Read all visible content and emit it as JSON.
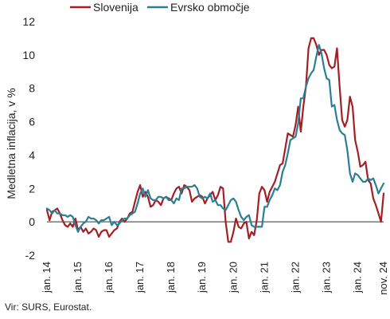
{
  "chart_data": {
    "type": "line",
    "ylabel": "Medletna inflacija, v %",
    "ylim": [
      -2,
      12
    ],
    "yticks": [
      "-2",
      "0",
      "2",
      "4",
      "6",
      "8",
      "10",
      "12"
    ],
    "x_start": "2014-01",
    "x_end": "2024-11",
    "x_ticks": [
      {
        "label": "jan. 14",
        "month": "2014-01"
      },
      {
        "label": "jan. 15",
        "month": "2015-01"
      },
      {
        "label": "jan. 16",
        "month": "2016-01"
      },
      {
        "label": "jan. 17",
        "month": "2017-01"
      },
      {
        "label": "jan. 18",
        "month": "2018-01"
      },
      {
        "label": "jan. 19",
        "month": "2019-01"
      },
      {
        "label": "jan. 20",
        "month": "2020-01"
      },
      {
        "label": "jan. 21",
        "month": "2021-01"
      },
      {
        "label": "jan. 22",
        "month": "2022-01"
      },
      {
        "label": "jan. 23",
        "month": "2023-01"
      },
      {
        "label": "jan. 24",
        "month": "2024-01"
      },
      {
        "label": "nov. 24",
        "month": "2024-11"
      }
    ],
    "legend_position": "top-left",
    "series": [
      {
        "name": "Slovenija",
        "color": "#A31F24",
        "values": [
          0.7,
          0.1,
          0.6,
          0.7,
          0.8,
          0.5,
          0.1,
          -0.2,
          -0.3,
          -0.1,
          -0.3,
          0.2,
          -0.5,
          -0.3,
          -0.6,
          -0.4,
          -0.7,
          -0.6,
          -0.4,
          -0.5,
          -0.9,
          -0.6,
          -0.5,
          -0.5,
          -0.9,
          -0.7,
          -0.5,
          -0.4,
          0.0,
          0.2,
          0.0,
          0.2,
          0.5,
          0.6,
          1.2,
          1.8,
          2.2,
          1.5,
          1.8,
          1.5,
          0.9,
          1.0,
          1.3,
          1.2,
          1.0,
          1.4,
          1.5,
          1.4,
          1.3,
          1.7,
          2.0,
          2.1,
          1.7,
          2.2,
          2.1,
          1.9,
          1.2,
          1.4,
          1.5,
          1.6,
          1.5,
          1.1,
          1.4,
          1.6,
          1.8,
          1.3,
          1.6,
          2.1,
          2.0,
          0.0,
          -1.2,
          -1.2,
          -0.6,
          0.2,
          -0.3,
          -0.4,
          -0.1,
          0.0,
          -1.0,
          -0.6,
          -0.8,
          0.1,
          1.7,
          2.1,
          1.9,
          1.2,
          1.8,
          2.1,
          2.4,
          2.9,
          3.4,
          3.5,
          4.4,
          5.3,
          5.2,
          5.1,
          5.8,
          6.9,
          5.4,
          6.9,
          8.1,
          10.4,
          11.0,
          11.0,
          10.6,
          10.0,
          10.3,
          10.3,
          10.0,
          9.4,
          9.2,
          9.3,
          10.4,
          8.1,
          6.1,
          5.7,
          6.1,
          7.5,
          6.9,
          4.9,
          4.2,
          3.3,
          3.4,
          3.6,
          2.5,
          2.3,
          1.4,
          1.0,
          0.5,
          0.0,
          1.7
        ]
      },
      {
        "name": "Evrsko območje",
        "color": "#2A7F94",
        "values": [
          0.8,
          0.7,
          0.5,
          0.7,
          0.5,
          0.5,
          0.4,
          0.4,
          0.3,
          0.4,
          0.3,
          -0.2,
          -0.6,
          -0.3,
          -0.1,
          0.0,
          0.3,
          0.2,
          0.2,
          0.1,
          -0.1,
          0.1,
          0.1,
          0.2,
          0.3,
          -0.2,
          0.0,
          -0.2,
          -0.1,
          0.1,
          0.2,
          0.2,
          0.4,
          0.5,
          0.6,
          1.1,
          1.7,
          2.0,
          1.5,
          1.9,
          1.4,
          1.3,
          1.3,
          1.5,
          1.5,
          1.4,
          1.5,
          1.3,
          1.3,
          1.1,
          1.4,
          1.3,
          2.0,
          2.0,
          2.1,
          2.1,
          2.1,
          2.2,
          2.0,
          1.5,
          1.4,
          1.5,
          1.4,
          1.7,
          1.2,
          1.3,
          1.0,
          1.0,
          0.8,
          0.7,
          1.0,
          1.3,
          1.4,
          1.2,
          0.7,
          0.3,
          0.1,
          0.3,
          0.4,
          -0.2,
          -0.3,
          -0.3,
          -0.3,
          -0.3,
          0.9,
          0.9,
          1.3,
          1.6,
          2.0,
          1.9,
          2.2,
          3.0,
          3.4,
          4.1,
          4.9,
          5.0,
          5.1,
          5.9,
          7.4,
          7.4,
          8.1,
          8.6,
          8.9,
          9.1,
          9.9,
          10.6,
          10.1,
          9.2,
          8.6,
          8.5,
          6.9,
          7.0,
          6.1,
          5.5,
          5.3,
          5.2,
          4.3,
          2.9,
          2.4,
          2.9,
          2.8,
          2.6,
          2.4,
          2.4,
          2.6,
          2.5,
          2.6,
          2.2,
          1.7,
          2.0,
          2.3
        ]
      }
    ]
  },
  "source": "Vir: SURS, Eurostat."
}
